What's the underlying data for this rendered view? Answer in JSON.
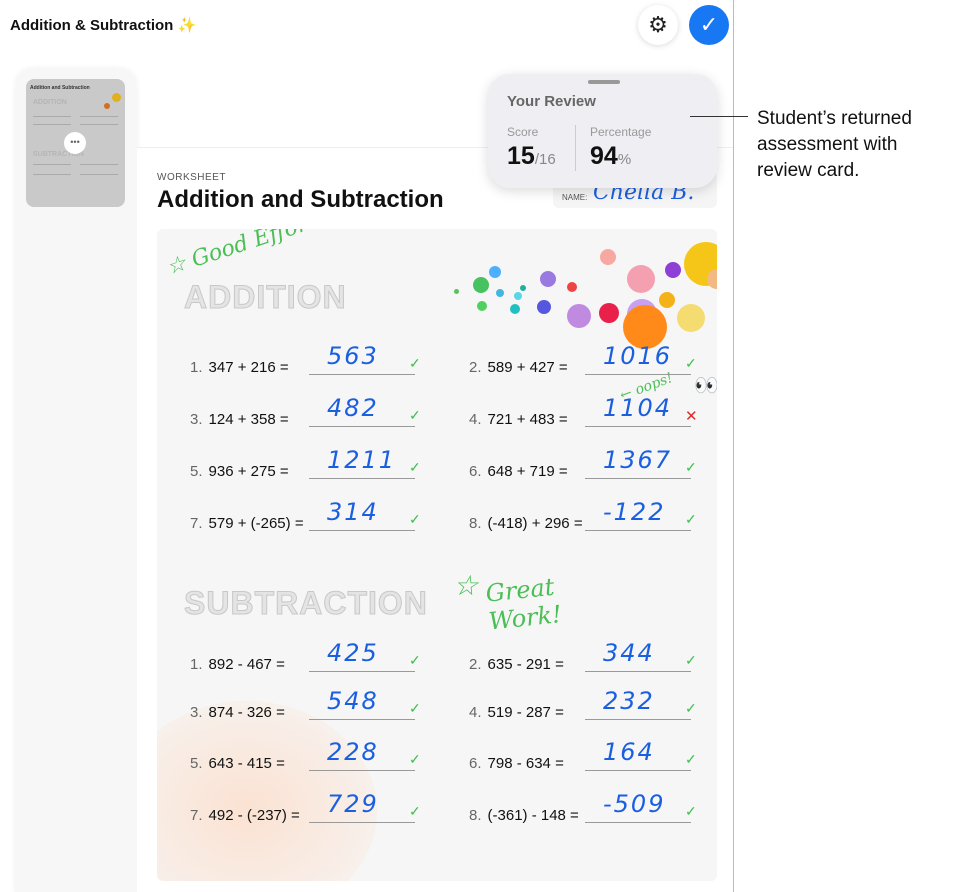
{
  "app": {
    "title": "Addition & Subtraction ✨",
    "settings_icon": "gear-icon",
    "done_icon": "checkmark-icon",
    "accent": "#1877f2"
  },
  "sidebar": {
    "thumbnail_title": "Addition and Subtraction",
    "thumbnail_sections": [
      "ADDITION",
      "SUBTRACTION"
    ],
    "more_label": "•••"
  },
  "worksheet": {
    "label": "WORKSHEET",
    "title": "Addition and Subtraction",
    "name_label": "NAME:",
    "name_value": "Chella B.",
    "annotations": {
      "top": "☆ Good Effort!",
      "oops": "← oops!",
      "eyes": "👀",
      "middle_star": "☆",
      "middle": "Great Work!"
    },
    "addition": {
      "heading": "ADDITION",
      "problems": [
        {
          "num": "1.",
          "expr": "347 + 216 =",
          "answer": "563",
          "correct": true
        },
        {
          "num": "2.",
          "expr": "589 + 427 =",
          "answer": "1016",
          "correct": true
        },
        {
          "num": "3.",
          "expr": "124 + 358 =",
          "answer": "482",
          "correct": true
        },
        {
          "num": "4.",
          "expr": "721 + 483 =",
          "answer": "1104",
          "correct": false
        },
        {
          "num": "5.",
          "expr": "936 + 275 =",
          "answer": "1211",
          "correct": true
        },
        {
          "num": "6.",
          "expr": "648 + 719 =",
          "answer": "1367",
          "correct": true
        },
        {
          "num": "7.",
          "expr": "579 + (-265) =",
          "answer": "314",
          "correct": true
        },
        {
          "num": "8.",
          "expr": "(-418) + 296 =",
          "answer": "-122",
          "correct": true
        }
      ]
    },
    "subtraction": {
      "heading": "SUBTRACTION",
      "problems": [
        {
          "num": "1.",
          "expr": "892 - 467 =",
          "answer": "425",
          "correct": true
        },
        {
          "num": "2.",
          "expr": "635 - 291 =",
          "answer": "344",
          "correct": true
        },
        {
          "num": "3.",
          "expr": "874 - 326 =",
          "answer": "548",
          "correct": true
        },
        {
          "num": "4.",
          "expr": "519 - 287 =",
          "answer": "232",
          "correct": true
        },
        {
          "num": "5.",
          "expr": "643 - 415 =",
          "answer": "228",
          "correct": true
        },
        {
          "num": "6.",
          "expr": "798 - 634 =",
          "answer": "164",
          "correct": true
        },
        {
          "num": "7.",
          "expr": "492 - (-237) =",
          "answer": "729",
          "correct": true
        },
        {
          "num": "8.",
          "expr": "(-361) - 148 =",
          "answer": "-509",
          "correct": true
        }
      ]
    }
  },
  "review": {
    "title": "Your Review",
    "score_label": "Score",
    "score": "15",
    "score_total": "16",
    "score_sep": "/",
    "percentage_label": "Percentage",
    "percentage": "94",
    "percent_sign": "%"
  },
  "callout": "Student’s returned assessment with review card."
}
